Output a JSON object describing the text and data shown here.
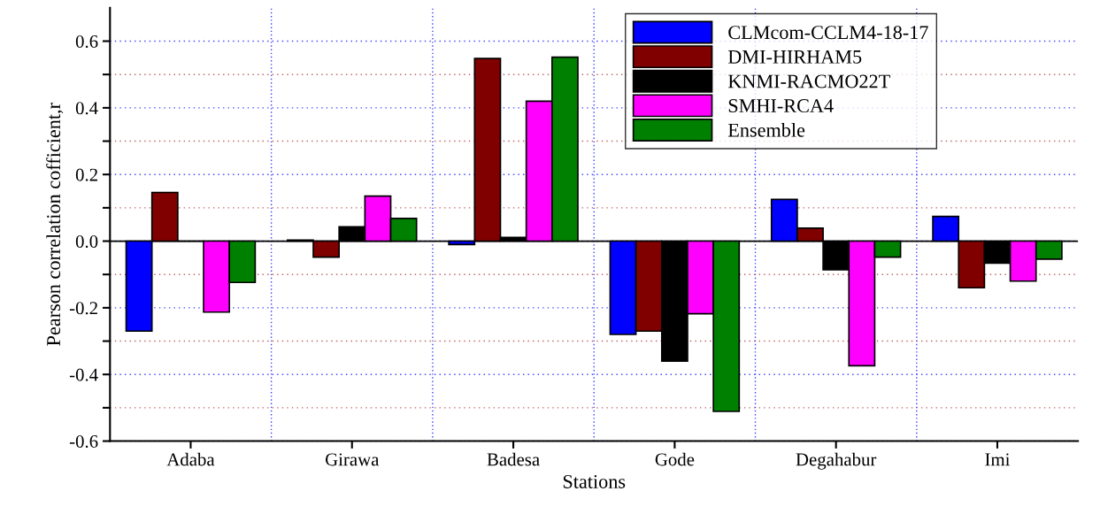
{
  "chart_data": {
    "type": "bar",
    "xlabel": "Stations",
    "ylabel": "Pearson correlation cofficient,r",
    "categories": [
      "Adaba",
      "Girawa",
      "Badesa",
      "Gode",
      "Degahabur",
      "Imi"
    ],
    "series": [
      {
        "name": "CLMcom-CCLM4-18-17",
        "color": "#0000ff",
        "values": [
          -0.27,
          0.003,
          -0.01,
          -0.28,
          0.125,
          0.074
        ]
      },
      {
        "name": "DMI-HIRHAM5",
        "color": "#800000",
        "values": [
          0.146,
          -0.048,
          0.548,
          -0.27,
          0.039,
          -0.14
        ]
      },
      {
        "name": "KNMI-RACMO22T",
        "color": "#000000",
        "values": [
          0,
          0.043,
          0.011,
          -0.36,
          -0.086,
          -0.066
        ]
      },
      {
        "name": "SMHI-RCA4",
        "color": "#ff00ff",
        "values": [
          -0.213,
          0.135,
          0.42,
          -0.218,
          -0.374,
          -0.12
        ]
      },
      {
        "name": "Ensemble",
        "color": "#008000",
        "values": [
          -0.124,
          0.068,
          0.552,
          -0.511,
          -0.048,
          -0.054
        ]
      }
    ],
    "ylim": [
      -0.6,
      0.7
    ],
    "yticks": [
      -0.6,
      {
        "value": -0.5,
        "label": null
      },
      -0.4,
      {
        "value": -0.3,
        "label": null
      },
      -0.2,
      {
        "value": -0.1,
        "label": null
      },
      {
        "value": 0,
        "label": "0.0"
      },
      {
        "value": 0.1,
        "label": null
      },
      0.2,
      {
        "value": 0.3,
        "label": null
      },
      0.4,
      {
        "value": 0.5,
        "label": null
      },
      0.6
    ],
    "ref_lines": [
      {
        "axis": "y",
        "value": 0,
        "color": "#000000",
        "line_style": "solid"
      }
    ],
    "grid": true,
    "legend": "top right"
  }
}
